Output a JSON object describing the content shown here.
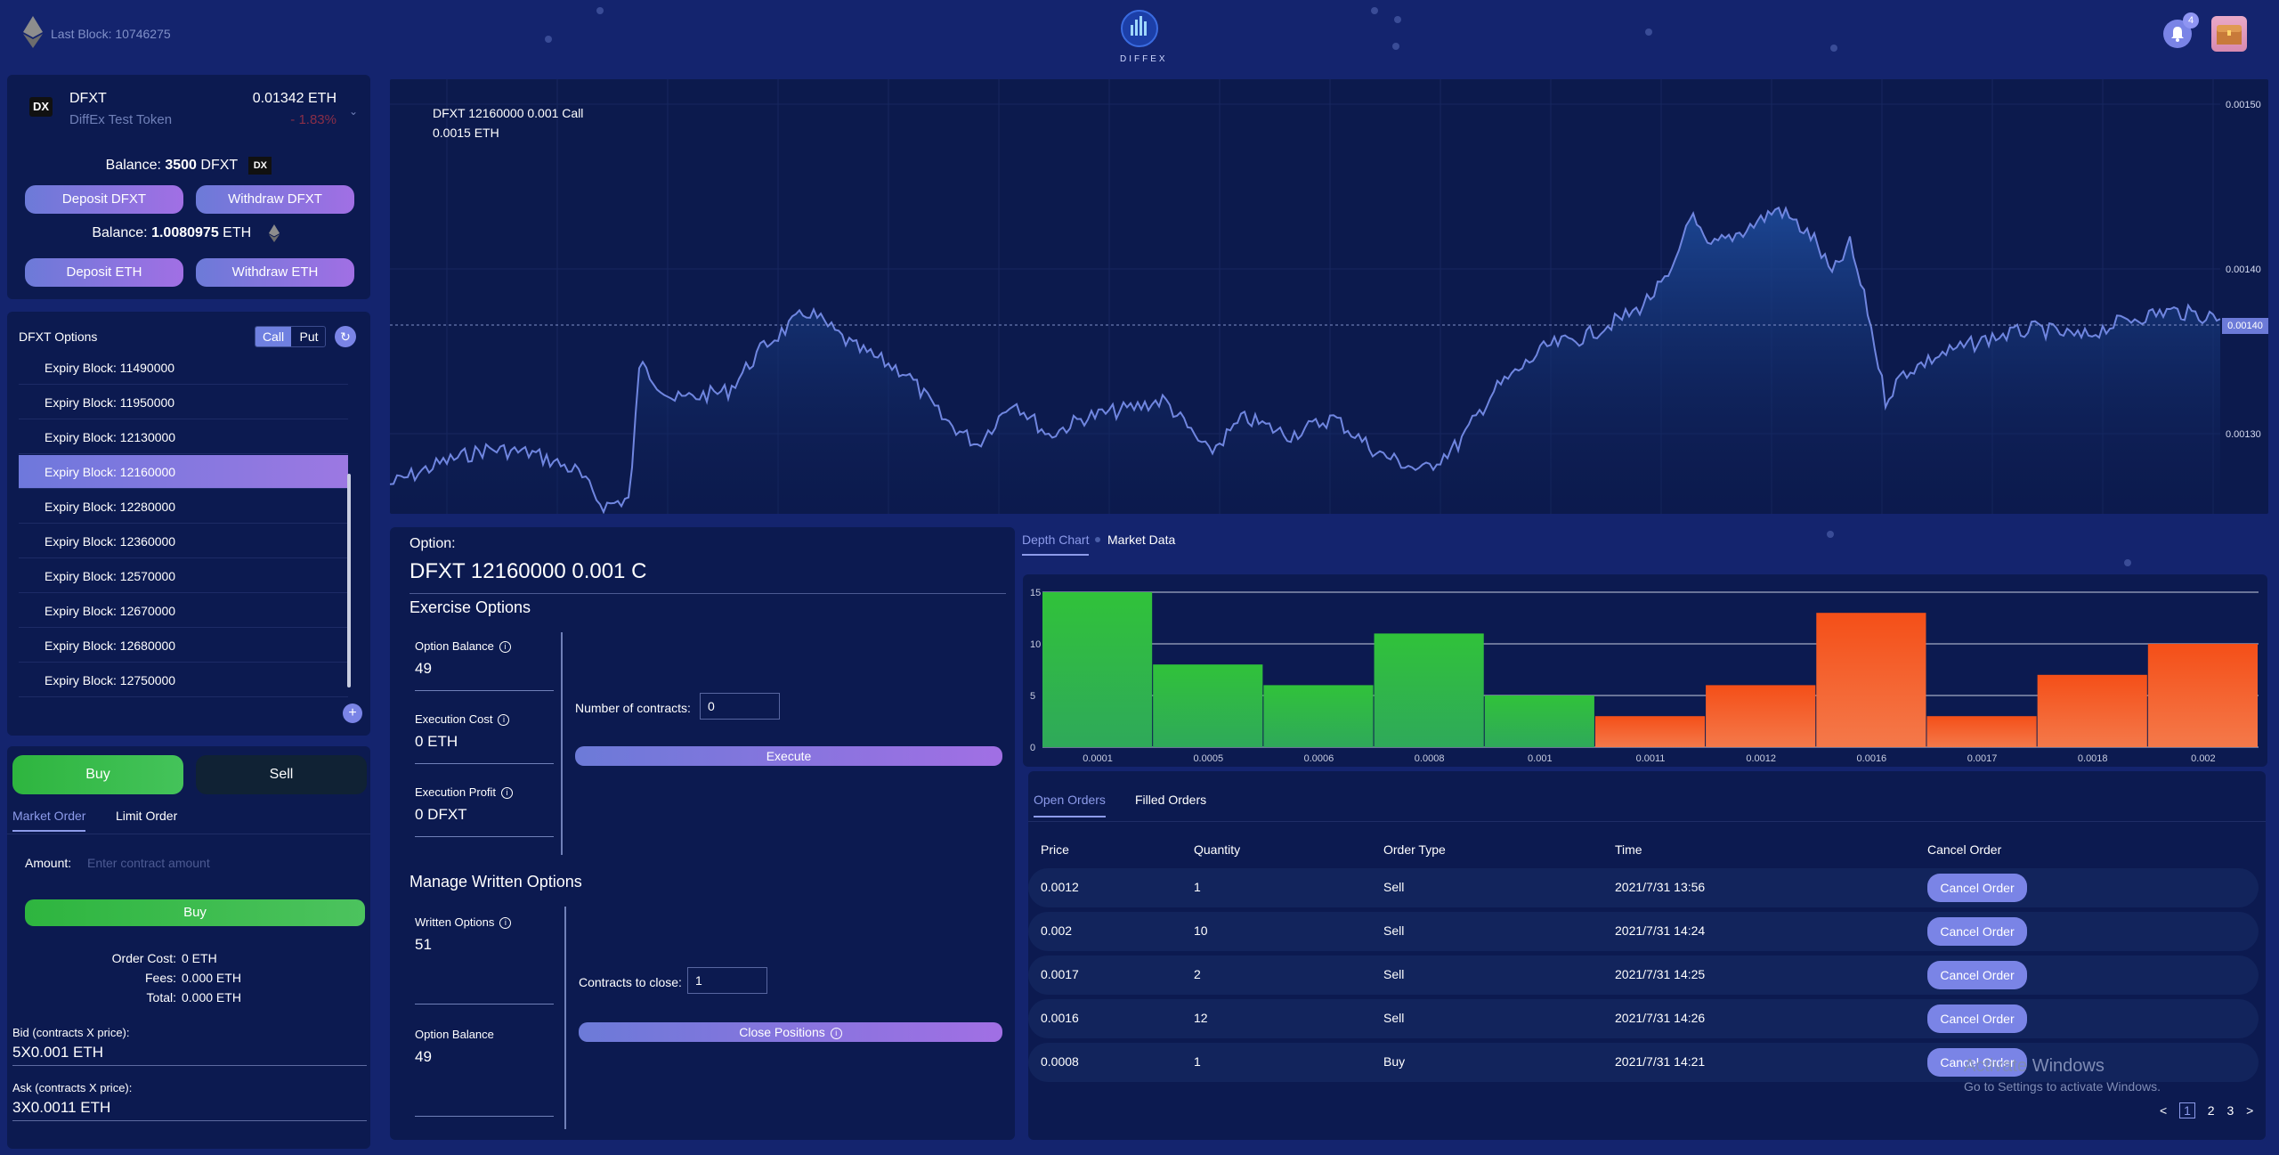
{
  "header": {
    "last_block": "Last Block: 10746275",
    "brand": "DIFFEX",
    "notification_count": "4"
  },
  "token": {
    "logo_text": "DX",
    "symbol": "DFXT",
    "name": "DiffEx Test Token",
    "price": "0.01342 ETH",
    "change": "- 1.83%",
    "balance_label": "Balance:",
    "balance_value": "3500",
    "balance_unit": "DFXT",
    "deposit_token": "Deposit DFXT",
    "withdraw_token": "Withdraw DFXT",
    "eth_balance_label": "Balance:",
    "eth_balance_value": "1.0080975",
    "eth_balance_unit": "ETH",
    "deposit_eth": "Deposit ETH",
    "withdraw_eth": "Withdraw ETH"
  },
  "options_list": {
    "title": "DFXT Options",
    "call_label": "Call",
    "put_label": "Put",
    "items": [
      "Expiry Block: 11490000",
      "Expiry Block: 11950000",
      "Expiry Block: 12130000",
      "Expiry Block: 12160000",
      "Expiry Block: 12280000",
      "Expiry Block: 12360000",
      "Expiry Block: 12570000",
      "Expiry Block: 12670000",
      "Expiry Block: 12680000",
      "Expiry Block: 12750000"
    ],
    "active_index": 3
  },
  "trade": {
    "buy_tab": "Buy",
    "sell_tab": "Sell",
    "market_tab": "Market Order",
    "limit_tab": "Limit Order",
    "amount_label": "Amount:",
    "amount_placeholder": "Enter contract amount",
    "buy_button": "Buy",
    "order_cost_label": "Order Cost:",
    "order_cost_value": "0 ETH",
    "fees_label": "Fees:",
    "fees_value": "0.000 ETH",
    "total_label": "Total:",
    "total_value": "0.000 ETH",
    "bid_label": "Bid (contracts X price):",
    "bid_value": "5X0.001 ETH",
    "ask_label": "Ask (contracts X price):",
    "ask_value": "3X0.0011 ETH"
  },
  "price_chart": {
    "caption_line1": "DFXT 12160000 0.001 Call",
    "caption_line2": "0.0015 ETH",
    "y_ticks": [
      "0.00150",
      "0.00140",
      "0.00130"
    ],
    "current_value": "0.00140"
  },
  "option": {
    "label": "Option:",
    "name": "DFXT 12160000 0.001 C",
    "exercise_title": "Exercise Options",
    "option_balance_label": "Option Balance",
    "option_balance_value": "49",
    "execution_cost_label": "Execution Cost",
    "execution_cost_value": "0 ETH",
    "execution_profit_label": "Execution Profit",
    "execution_profit_value": "0 DFXT",
    "contracts_label": "Number of contracts:",
    "contracts_value": "0",
    "execute_button": "Execute",
    "manage_title": "Manage Written Options",
    "written_label": "Written Options",
    "written_value": "51",
    "option_balance2_label": "Option Balance",
    "option_balance2_value": "49",
    "close_label": "Contracts to close:",
    "close_value": "1",
    "close_button": "Close Positions"
  },
  "depth_tabs": {
    "depth": "Depth Chart",
    "market": "Market Data"
  },
  "chart_data": {
    "type": "bar",
    "categories": [
      "0.0001",
      "0.0005",
      "0.0006",
      "0.0008",
      "0.001",
      "0.0011",
      "0.0012",
      "0.0016",
      "0.0017",
      "0.0018",
      "0.002"
    ],
    "series": [
      {
        "values": [
          15,
          8,
          6,
          11,
          5,
          0,
          0,
          0,
          0,
          0,
          0
        ]
      },
      {
        "values": [
          0,
          0,
          0,
          0,
          0,
          3,
          6,
          13,
          3,
          7,
          10
        ]
      }
    ],
    "y_ticks": [
      "15",
      "10",
      "5",
      "0"
    ],
    "ylim": [
      0,
      15
    ],
    "colors": {
      "bid": "#2fba45",
      "ask": "#f4561e"
    }
  },
  "orders": {
    "open_tab": "Open Orders",
    "filled_tab": "Filled Orders",
    "headers": [
      "Price",
      "Quantity",
      "Order Type",
      "Time",
      "Cancel Order"
    ],
    "rows": [
      {
        "price": "0.0012",
        "quantity": "1",
        "type": "Sell",
        "time": "2021/7/31 13:56",
        "action": "Cancel Order"
      },
      {
        "price": "0.002",
        "quantity": "10",
        "type": "Sell",
        "time": "2021/7/31 14:24",
        "action": "Cancel Order"
      },
      {
        "price": "0.0017",
        "quantity": "2",
        "type": "Sell",
        "time": "2021/7/31 14:25",
        "action": "Cancel Order"
      },
      {
        "price": "0.0016",
        "quantity": "12",
        "type": "Sell",
        "time": "2021/7/31 14:26",
        "action": "Cancel Order"
      },
      {
        "price": "0.0008",
        "quantity": "1",
        "type": "Buy",
        "time": "2021/7/31 14:21",
        "action": "Cancel Order"
      }
    ],
    "pages": [
      "1",
      "2",
      "3"
    ],
    "prev": "<",
    "next": ">"
  },
  "watermark": {
    "title": "Activate Windows",
    "subtitle": "Go to Settings to activate Windows."
  }
}
